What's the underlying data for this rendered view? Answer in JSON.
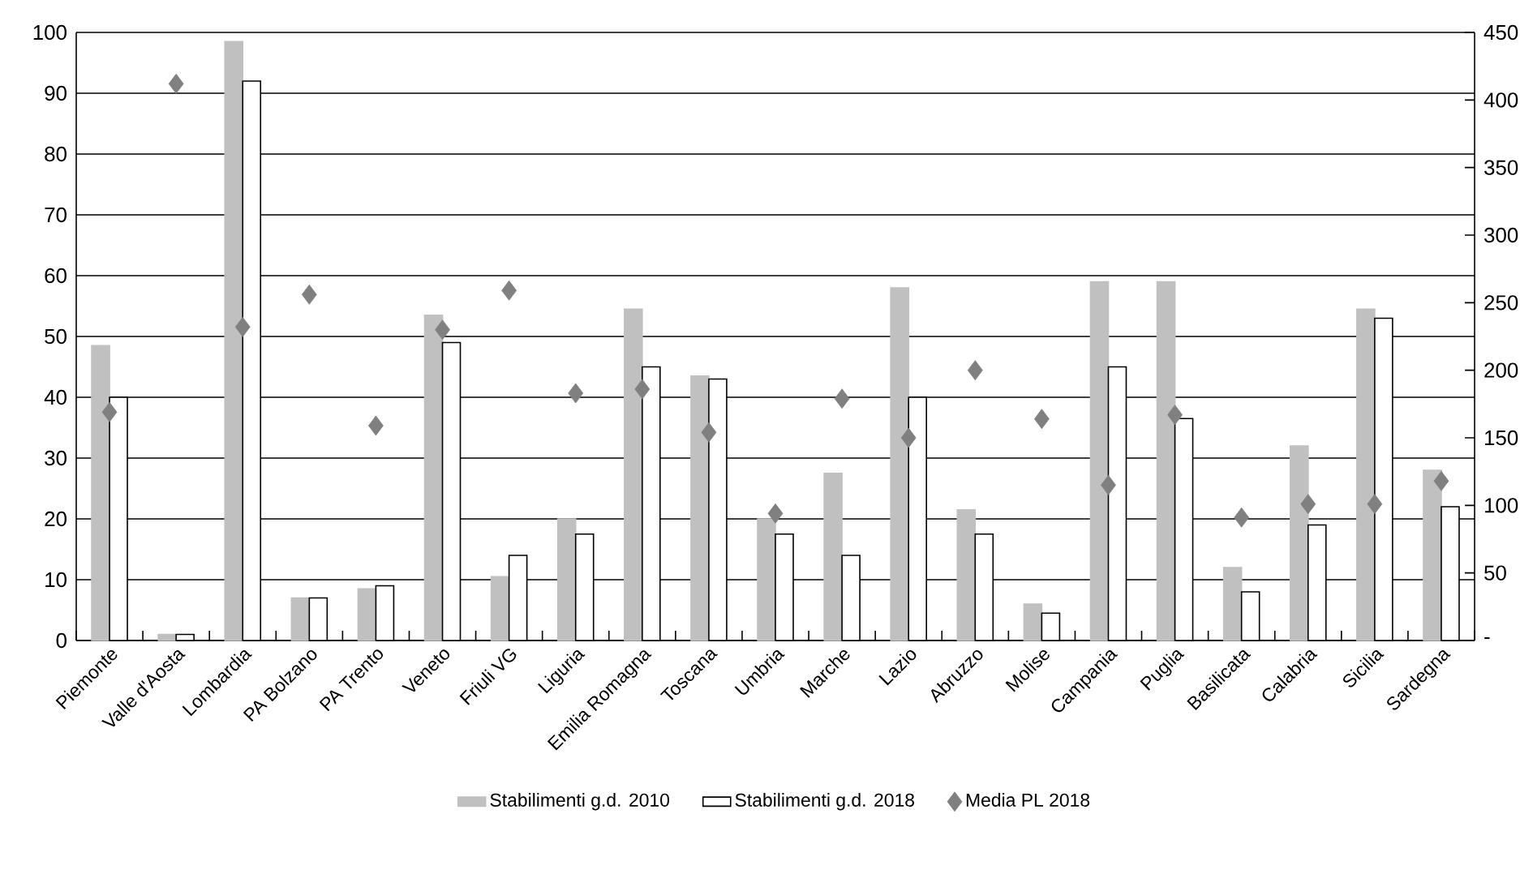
{
  "chart_data": {
    "type": "bar",
    "categories": [
      "Piemonte",
      "Valle d'Aosta",
      "Lombardia",
      "PA Bolzano",
      "PA Trento",
      "Veneto",
      "Friuli VG",
      "Liguria",
      "Emilia Romagna",
      "Toscana",
      "Umbria",
      "Marche",
      "Lazio",
      "Abruzzo",
      "Molise",
      "Campania",
      "Puglia",
      "Basilicata",
      "Calabria",
      "Sicilia",
      "Sardegna"
    ],
    "series": [
      {
        "name": "Stabilimenti g.d. 2010",
        "color": "#c0c0c0",
        "values": [
          48.5,
          1,
          98.5,
          7,
          8.5,
          53.5,
          10.5,
          20,
          54.5,
          43.5,
          20,
          27.5,
          58,
          21.5,
          6,
          59,
          59,
          12,
          32,
          54.5,
          28
        ]
      },
      {
        "name": "Stabilimenti g.d. 2018",
        "color": "#ffffff",
        "values": [
          40,
          1,
          92,
          7,
          9,
          49,
          14,
          17.5,
          45,
          43,
          17.5,
          14,
          40,
          17.5,
          4.5,
          45,
          36.5,
          8,
          19,
          53,
          22
        ]
      },
      {
        "name": "Media PL 2018",
        "type": "scatter",
        "axis": "y2",
        "marker": "diamond",
        "color": "#808080",
        "values": [
          169,
          412,
          232,
          256,
          159,
          230,
          259,
          183,
          186,
          154,
          94,
          179,
          150,
          200,
          164,
          115,
          167,
          91,
          101,
          101,
          118
        ]
      }
    ],
    "ylim": [
      0,
      100
    ],
    "yticks": [
      0,
      10,
      20,
      30,
      40,
      50,
      60,
      70,
      80,
      90,
      100
    ],
    "y2lim": [
      0,
      450
    ],
    "y2ticks": [
      {
        "value": 0,
        "label": "-"
      },
      50,
      100,
      150,
      200,
      250,
      300,
      350,
      400,
      450
    ],
    "grid": "y",
    "legend": "bottom"
  }
}
